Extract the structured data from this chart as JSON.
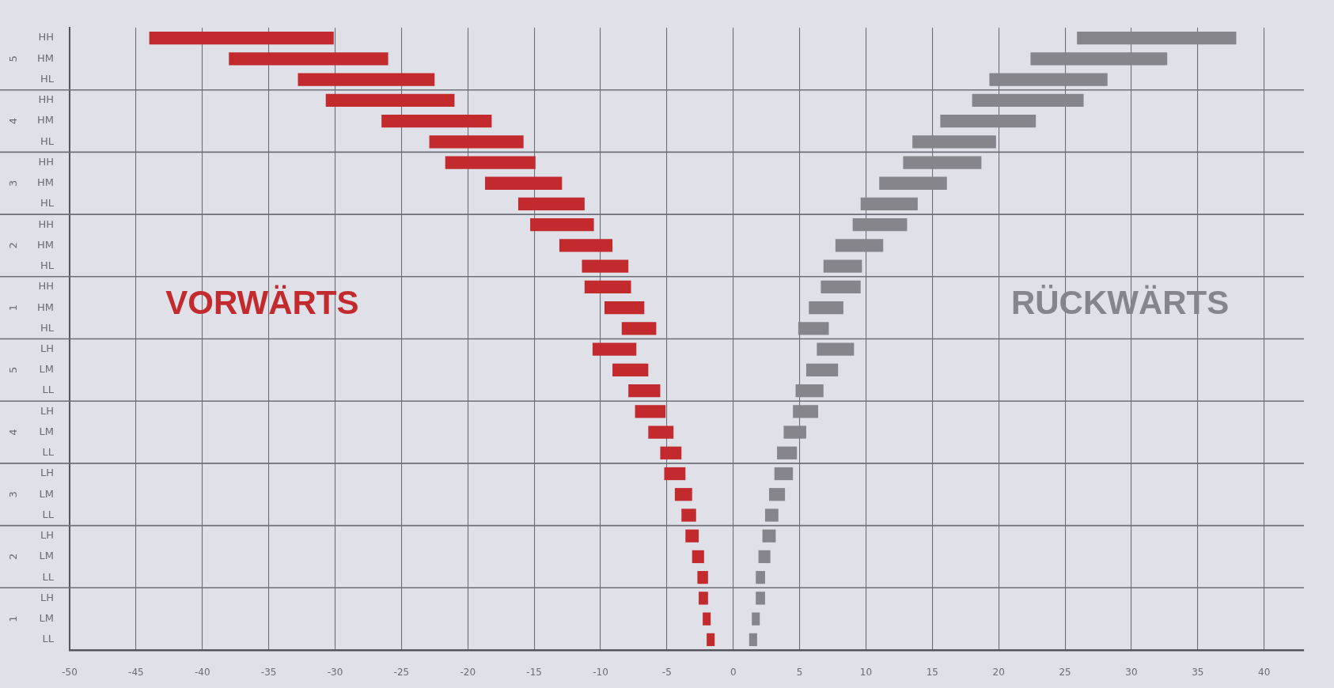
{
  "chart_data": {
    "type": "bar",
    "orientation": "horizontal",
    "categories": [
      "HH",
      "HM",
      "HL",
      "HH",
      "HM",
      "HL",
      "HH",
      "HM",
      "HL",
      "HH",
      "HM",
      "HL",
      "HH",
      "HM",
      "HL",
      "LH",
      "LM",
      "LL",
      "LH",
      "LM",
      "LL",
      "LH",
      "LM",
      "LL",
      "LH",
      "LM",
      "LL",
      "LH",
      "LM",
      "LL"
    ],
    "series": [
      {
        "name": "VORWÄRTS",
        "color": "#c22a2e",
        "base": [
          -44.0,
          -38.0,
          -32.8,
          -30.7,
          -26.5,
          -22.9,
          -21.7,
          -18.7,
          -16.2,
          -15.3,
          -13.1,
          -11.4,
          -11.2,
          -9.7,
          -8.4,
          -10.6,
          -9.1,
          -7.9,
          -7.4,
          -6.4,
          -5.5,
          -5.2,
          -4.4,
          -3.9,
          -3.6,
          -3.1,
          -2.7,
          -2.6,
          -2.3,
          -2.0
        ],
        "values": [
          13.9,
          12.0,
          10.3,
          9.7,
          8.3,
          7.1,
          6.8,
          5.8,
          5.0,
          4.8,
          4.0,
          3.5,
          3.5,
          3.0,
          2.6,
          3.3,
          2.7,
          2.4,
          2.3,
          1.9,
          1.6,
          1.6,
          1.3,
          1.1,
          1.0,
          0.9,
          0.8,
          0.7,
          0.6,
          0.6
        ]
      },
      {
        "name": "RÜCKWÄRTS",
        "color": "#85858b",
        "base": [
          25.9,
          22.4,
          19.3,
          18.0,
          15.6,
          13.5,
          12.8,
          11.0,
          9.6,
          9.0,
          7.7,
          6.8,
          6.6,
          5.7,
          4.9,
          6.3,
          5.5,
          4.7,
          4.5,
          3.8,
          3.3,
          3.1,
          2.7,
          2.4,
          2.2,
          1.9,
          1.7,
          1.7,
          1.4,
          1.2
        ],
        "values": [
          12.0,
          10.3,
          8.9,
          8.4,
          7.2,
          6.3,
          5.9,
          5.1,
          4.3,
          4.1,
          3.6,
          2.9,
          3.0,
          2.6,
          2.3,
          2.8,
          2.4,
          2.1,
          1.9,
          1.7,
          1.5,
          1.4,
          1.2,
          1.0,
          1.0,
          0.9,
          0.7,
          0.7,
          0.6,
          0.6
        ]
      }
    ],
    "xlim": [
      -50,
      43
    ],
    "xticks": [
      -50,
      -45,
      -40,
      -35,
      -30,
      -25,
      -20,
      -15,
      -10,
      -5,
      0,
      5,
      10,
      15,
      20,
      25,
      30,
      35,
      40
    ],
    "grid": "x",
    "legend": false,
    "annotations": [
      "5",
      "4",
      "3",
      "2",
      "1",
      "5",
      "4",
      "3",
      "2",
      "1"
    ]
  }
}
